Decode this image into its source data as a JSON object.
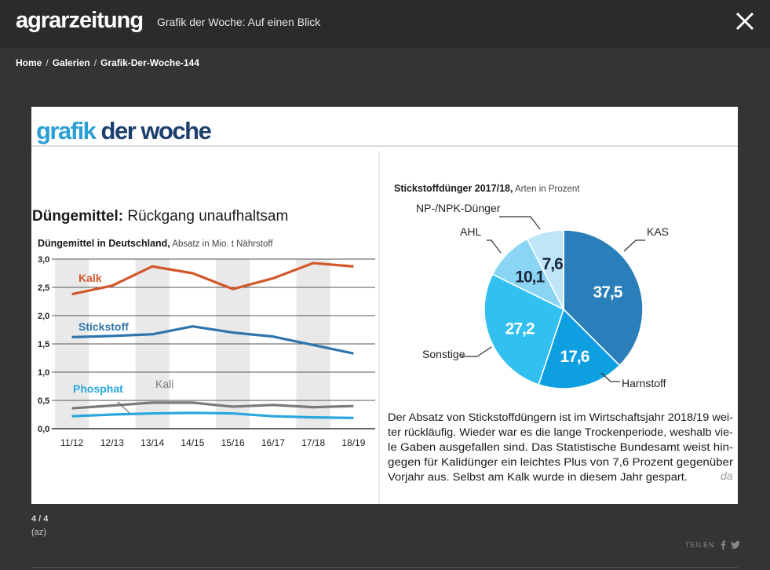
{
  "header": {
    "logo": "agrarzeitung",
    "gallery_title": "Grafik der Woche: Auf einen Blick"
  },
  "breadcrumb": [
    "Home",
    "Galerien",
    "Grafik-Der-Woche-144"
  ],
  "figure": {
    "banner": "grafik der woche",
    "headline_bold": "Düngemittel:",
    "headline_rest": " Rückgang unaufhaltsam",
    "line_subtitle_bold": "Düngemittel in Deutschland,",
    "line_subtitle_rest": " Absatz in Mio. t Nährstoff",
    "pie_subtitle_bold": "Stickstoffdünger 2017/18,",
    "pie_subtitle_rest": " Arten in Prozent",
    "paragraph": [
      "Der Absatz von Stickstoffdüngern ist im Wirtschaftsjahr 2018/19 wei-",
      "ter rückläufig. Wieder war es die lange Trockenperiode, weshalb vie-",
      "le Gaben ausgefallen sind. Das Statistische Bundesamt weist hin-",
      "gegen für Kalidünger ein leichtes Plus von 7,6 Prozent gegenüber",
      "Vorjahr aus. Selbst am Kalk wurde in diesem Jahr gespart."
    ],
    "signature": "da"
  },
  "chart_data": [
    {
      "type": "line",
      "x": [
        "11/12",
        "12/13",
        "13/14",
        "14/15",
        "15/16",
        "16/17",
        "17/18",
        "18/19"
      ],
      "yticks": [
        "0,0",
        "0,5",
        "1,0",
        "1,5",
        "2,0",
        "2,5",
        "3,0"
      ],
      "ylim": [
        0,
        3
      ],
      "series": [
        {
          "name": "Kalk",
          "color": "#d2572b",
          "values": [
            2.38,
            2.53,
            2.87,
            2.75,
            2.47,
            2.66,
            2.93,
            2.87
          ]
        },
        {
          "name": "Stickstoff",
          "color": "#2e75ad",
          "values": [
            1.62,
            1.64,
            1.67,
            1.81,
            1.7,
            1.63,
            1.48,
            1.33
          ]
        },
        {
          "name": "Kali",
          "color": "#7a7a7a",
          "values": [
            0.36,
            0.41,
            0.46,
            0.46,
            0.39,
            0.42,
            0.38,
            0.4
          ]
        },
        {
          "name": "Phosphat",
          "color": "#29a7dd",
          "values": [
            0.22,
            0.25,
            0.27,
            0.28,
            0.27,
            0.22,
            0.2,
            0.19
          ]
        }
      ]
    },
    {
      "type": "pie",
      "slices": [
        {
          "name": "KAS",
          "label": "37,5",
          "value": 37.5,
          "color": "#2a7fba",
          "text": "#ffffff"
        },
        {
          "name": "Harnstoff",
          "label": "17,6",
          "value": 17.6,
          "color": "#0e9fe0",
          "text": "#ffffff"
        },
        {
          "name": "Sonstige",
          "label": "27,2",
          "value": 27.2,
          "color": "#31c0ef",
          "text": "#ffffff"
        },
        {
          "name": "AHL",
          "label": "10,1",
          "value": 10.1,
          "color": "#8bd5f4",
          "text": "#1b2a3a"
        },
        {
          "name": "NP-/NPK-Dünger",
          "label": "7,6",
          "value": 7.6,
          "color": "#bfe5f8",
          "text": "#1b2a3a"
        }
      ]
    }
  ],
  "footer": {
    "counter": "4 / 4",
    "credit": "(az)",
    "share_label": "TEILEN"
  },
  "colors": {
    "background": "#343434",
    "topbar": "#2b2b2b",
    "banner_grafik": "#2a9fd6",
    "banner_woche": "#1c3f6e"
  },
  "icons": [
    "close-icon",
    "facebook-icon",
    "twitter-icon"
  ]
}
